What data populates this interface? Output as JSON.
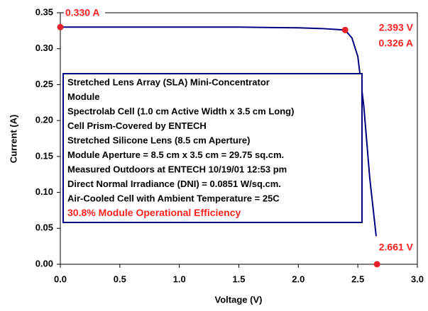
{
  "chart_data": {
    "type": "line",
    "xlabel": "Voltage (V)",
    "ylabel": "Current (A)",
    "x": [
      0,
      0.5,
      1.0,
      1.5,
      2.0,
      2.2,
      2.3,
      2.393,
      2.45,
      2.5,
      2.55,
      2.6,
      2.654
    ],
    "values": [
      0.33,
      0.33,
      0.33,
      0.33,
      0.329,
      0.328,
      0.327,
      0.326,
      0.315,
      0.289,
      0.22,
      0.12,
      0.039
    ],
    "color": "#000080",
    "points": {
      "x": [
        0,
        2.393,
        2.661
      ],
      "values": [
        0.33,
        0.326,
        0
      ],
      "color": "#e8202a"
    },
    "annotations": [
      "0.330 A",
      "2.393 V",
      "0.326 A",
      "2.661 V"
    ],
    "notes": [
      "Stretched Lens Array (SLA) Mini-Concentrator",
      "Module",
      "Spectrolab Cell (1.0 cm Active Width x 3.5 cm Long)",
      "Cell Prism-Covered by ENTECH",
      "Stretched Silicone Lens (8.5 cm Aperture)",
      "Module Aperture = 8.5 cm x 3.5 cm = 29.75 sq.cm.",
      "Measured Outdoors at ENTECH 10/19/01 12:53 pm",
      "Direct Normal Irradiance (DNI) = 0.0851 W/sq.cm.",
      "Air-Cooled Cell with Ambient Temperature = 25C",
      "30.8% Module Operational Efficiency"
    ],
    "xlim": [
      0,
      3.0
    ],
    "xticks": [
      {
        "value": 0,
        "label": "0.0"
      },
      0.5,
      {
        "value": 1.0,
        "label": "1.0"
      },
      1.5,
      {
        "value": 2.0,
        "label": "2.0"
      },
      2.5,
      {
        "value": 3.0,
        "label": "3.0"
      }
    ],
    "ylim": [
      0,
      0.35
    ],
    "yticks": [
      {
        "value": 0,
        "label": "0.00"
      },
      0.05,
      {
        "value": 0.1,
        "label": "0.10"
      },
      0.15,
      {
        "value": 0.2,
        "label": "0.20"
      },
      0.25,
      {
        "value": 0.3,
        "label": "0.30"
      },
      0.35
    ],
    "grid": false
  }
}
